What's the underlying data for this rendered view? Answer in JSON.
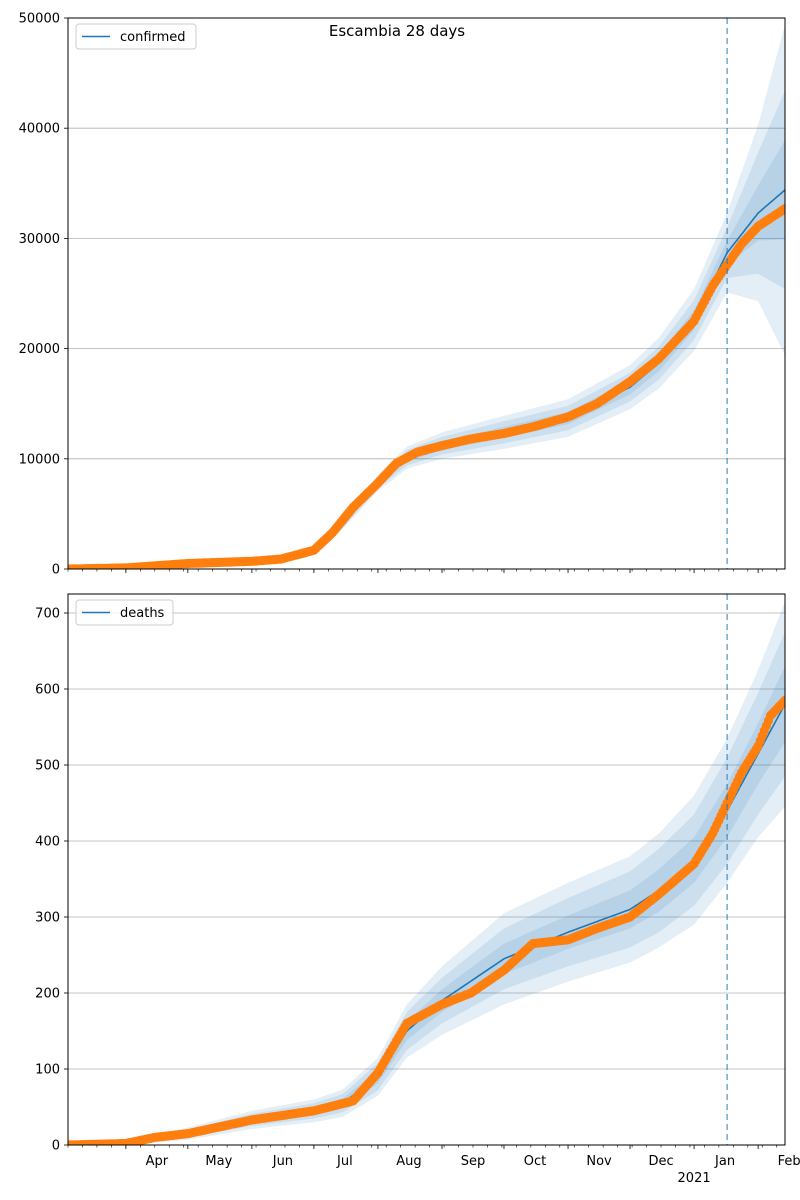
{
  "figure": {
    "suptitle": "Escambia 28 days"
  },
  "x_axis": {
    "range": [
      "2020-03-04",
      "2021-02-14"
    ],
    "month_ticks": [
      {
        "date": "2020-04-01",
        "label": "Apr"
      },
      {
        "date": "2020-05-01",
        "label": "May"
      },
      {
        "date": "2020-06-01",
        "label": "Jun"
      },
      {
        "date": "2020-07-01",
        "label": "Jul"
      },
      {
        "date": "2020-08-01",
        "label": "Aug"
      },
      {
        "date": "2020-09-01",
        "label": "Sep"
      },
      {
        "date": "2020-10-01",
        "label": "Oct"
      },
      {
        "date": "2020-11-01",
        "label": "Nov"
      },
      {
        "date": "2020-12-01",
        "label": "Dec"
      },
      {
        "date": "2021-01-01",
        "label": "Jan"
      },
      {
        "date": "2021-02-01",
        "label": "Feb"
      }
    ],
    "year_label": "2021",
    "forecast_start": "2021-01-17"
  },
  "colors": {
    "model": "#1f77b4",
    "observed": "#ff7f0e",
    "band": "#1f77b4",
    "grid": "#b0b0b0",
    "vline": "#1f77b4"
  },
  "chart_data": [
    {
      "type": "line",
      "legend": "confirmed",
      "legend_loc": "top-left",
      "ylim": [
        0,
        50000
      ],
      "yticks": [
        0,
        10000,
        20000,
        30000,
        40000,
        50000
      ],
      "grid": "y",
      "model": {
        "x": [
          "2020-03-04",
          "2020-04-01",
          "2020-05-01",
          "2020-06-01",
          "2020-07-01",
          "2020-07-15",
          "2020-08-01",
          "2020-08-15",
          "2020-09-01",
          "2020-10-01",
          "2020-11-01",
          "2020-12-01",
          "2020-12-15",
          "2021-01-01",
          "2021-01-17",
          "2021-02-01",
          "2021-02-14"
        ],
        "y": [
          0,
          100,
          400,
          700,
          1700,
          4000,
          7800,
          10100,
          11200,
          12400,
          13700,
          16500,
          18700,
          22600,
          28700,
          32300,
          34400
        ],
        "bands": [
          {
            "half_width": [
              0,
              25,
              60,
              90,
              150,
              350,
              750,
              1000,
              1200,
              1500,
              1700,
              2000,
              2300,
              2800,
              3600,
              8000,
              15000
            ]
          },
          {
            "half_width": [
              0,
              15,
              40,
              60,
              100,
              250,
              500,
              700,
              800,
              1000,
              1100,
              1300,
              1500,
              1800,
              2300,
              5500,
              9000
            ]
          },
          {
            "half_width": [
              0,
              8,
              20,
              30,
              50,
              130,
              250,
              350,
              400,
              500,
              550,
              650,
              750,
              900,
              1100,
              2500,
              4500
            ]
          }
        ]
      },
      "observed": {
        "x": [
          "2020-03-04",
          "2020-04-01",
          "2020-05-01",
          "2020-06-01",
          "2020-06-15",
          "2020-07-01",
          "2020-07-10",
          "2020-07-20",
          "2020-08-01",
          "2020-08-10",
          "2020-08-20",
          "2020-09-01",
          "2020-09-15",
          "2020-10-01",
          "2020-10-15",
          "2020-11-01",
          "2020-11-15",
          "2020-12-01",
          "2020-12-15",
          "2021-01-01",
          "2021-01-10",
          "2021-01-17",
          "2021-01-24",
          "2021-02-01",
          "2021-02-14"
        ],
        "y": [
          0,
          100,
          500,
          700,
          900,
          1700,
          3300,
          5600,
          7800,
          9600,
          10600,
          11200,
          11800,
          12300,
          12900,
          13800,
          15000,
          17000,
          19100,
          22500,
          25700,
          27600,
          29500,
          31100,
          32700
        ]
      }
    },
    {
      "type": "line",
      "legend": "deaths",
      "legend_loc": "top-left",
      "ylim": [
        0,
        725
      ],
      "yticks": [
        0,
        100,
        200,
        300,
        400,
        500,
        600,
        700
      ],
      "grid": "y",
      "model": {
        "x": [
          "2020-03-04",
          "2020-04-01",
          "2020-04-15",
          "2020-05-01",
          "2020-06-01",
          "2020-07-01",
          "2020-07-15",
          "2020-08-01",
          "2020-08-15",
          "2020-09-01",
          "2020-10-01",
          "2020-11-01",
          "2020-12-01",
          "2020-12-15",
          "2021-01-01",
          "2021-01-17",
          "2021-02-01",
          "2021-02-14"
        ],
        "y": [
          0,
          2,
          8,
          15,
          33,
          45,
          55,
          90,
          150,
          190,
          245,
          280,
          310,
          335,
          375,
          440,
          515,
          580
        ],
        "bands": [
          {
            "half_width": [
              0,
              2,
              5,
              8,
              12,
              15,
              18,
              25,
              35,
              45,
              60,
              65,
              70,
              75,
              85,
              95,
              110,
              135
            ]
          },
          {
            "half_width": [
              0,
              1,
              3,
              5,
              8,
              10,
              12,
              18,
              25,
              30,
              40,
              45,
              50,
              55,
              60,
              70,
              80,
              95
            ]
          },
          {
            "half_width": [
              0,
              1,
              2,
              3,
              4,
              5,
              6,
              9,
              12,
              15,
              20,
              22,
              25,
              28,
              30,
              35,
              40,
              50
            ]
          }
        ]
      },
      "observed": {
        "x": [
          "2020-03-04",
          "2020-04-01",
          "2020-04-15",
          "2020-05-01",
          "2020-06-01",
          "2020-07-01",
          "2020-07-20",
          "2020-08-01",
          "2020-08-15",
          "2020-09-01",
          "2020-09-15",
          "2020-10-01",
          "2020-10-15",
          "2020-11-01",
          "2020-11-15",
          "2020-12-01",
          "2020-12-15",
          "2021-01-01",
          "2021-01-10",
          "2021-01-17",
          "2021-01-24",
          "2021-02-01",
          "2021-02-07",
          "2021-02-14"
        ],
        "y": [
          0,
          2,
          10,
          15,
          33,
          45,
          58,
          95,
          160,
          185,
          200,
          230,
          265,
          270,
          285,
          300,
          330,
          370,
          410,
          450,
          490,
          525,
          565,
          585
        ]
      }
    }
  ]
}
